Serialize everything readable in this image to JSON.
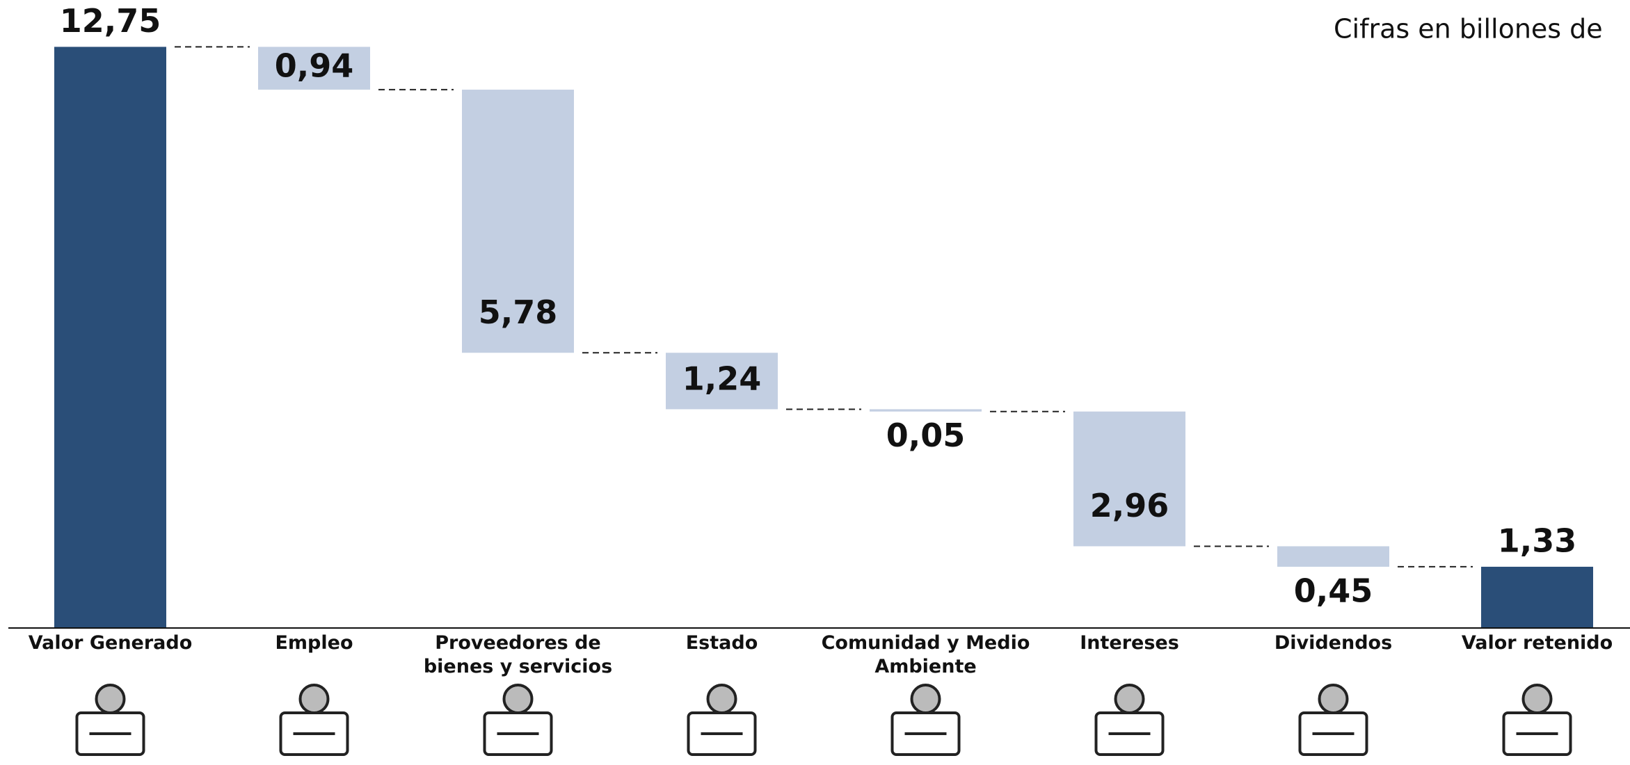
{
  "chart_data": {
    "type": "waterfall",
    "subtitle": "Cifras en billones de",
    "categories": [
      "Valor Generado",
      "Empleo",
      "Proveedores de bienes y servicios",
      "Estado",
      "Comunidad y Medio Ambiente",
      "Intereses",
      "Dividendos",
      "Valor retenido"
    ],
    "values": [
      12.75,
      0.94,
      5.78,
      1.24,
      0.05,
      2.96,
      0.45,
      1.33
    ],
    "value_labels": [
      "12,75",
      "0,94",
      "5,78",
      "1,24",
      "0,05",
      "2,96",
      "0,45",
      "1,33"
    ],
    "measure": [
      "total",
      "relative",
      "relative",
      "relative",
      "relative",
      "relative",
      "relative",
      "total"
    ],
    "total_color": "#2a4e78",
    "color": "#c3cfe2",
    "ylim": [
      0,
      13
    ]
  }
}
